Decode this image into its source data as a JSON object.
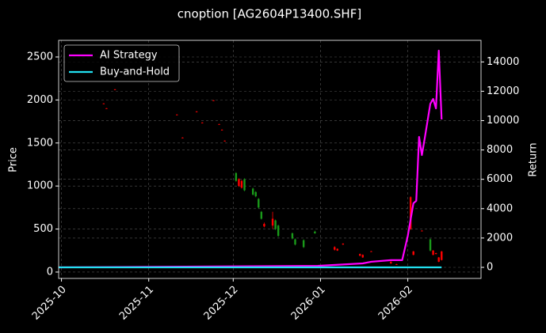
{
  "chart_data": {
    "type": "candlestick",
    "title": "cnoption [AG2604P13400.SHF]",
    "ylabel": "Price",
    "y2label": "Return",
    "xlim": [
      "2025-09-30",
      "2026-02-27"
    ],
    "xticks": [
      {
        "value": "2025-10-01",
        "label": "2025-10"
      },
      {
        "value": "2025-11-01",
        "label": "2025-11"
      },
      {
        "value": "2025-12-01",
        "label": "2025-12"
      },
      {
        "value": "2026-01-01",
        "label": "2026-01"
      },
      {
        "value": "2026-02-01",
        "label": "2026-02"
      }
    ],
    "ylim": [
      -74,
      2693
    ],
    "yticks": [
      0,
      500,
      1000,
      1500,
      2000,
      2500
    ],
    "y2lim": [
      -755,
      15470
    ],
    "y2ticks": [
      0,
      2000,
      4000,
      6000,
      8000,
      10000,
      12000,
      14000
    ],
    "grid": true,
    "legend_position": "upper left",
    "up_color": "#ff0000",
    "down_color": "#1a9a1a",
    "x": [
      "2025-10-16",
      "2025-10-17",
      "2025-10-20",
      "2025-11-11",
      "2025-11-13",
      "2025-11-18",
      "2025-11-20",
      "2025-11-24",
      "2025-11-26",
      "2025-11-27",
      "2025-11-28",
      "2025-12-02",
      "2025-12-03",
      "2025-12-04",
      "2025-12-05",
      "2025-12-08",
      "2025-12-09",
      "2025-12-10",
      "2025-12-11",
      "2025-12-12",
      "2025-12-15",
      "2025-12-16",
      "2025-12-17",
      "2025-12-22",
      "2025-12-23",
      "2025-12-26",
      "2025-12-30",
      "2026-01-06",
      "2026-01-07",
      "2026-01-09",
      "2026-01-15",
      "2026-01-16",
      "2026-01-19",
      "2026-01-26",
      "2026-01-28",
      "2026-02-02",
      "2026-02-03",
      "2026-02-06",
      "2026-02-09",
      "2026-02-10",
      "2026-02-11",
      "2026-02-12",
      "2026-02-13"
    ],
    "open": [
      1955,
      1900,
      2120,
      1828,
      1560,
      1864,
      1735,
      1993,
      1717,
      1652,
      1524,
      1150,
      1000,
      980,
      1080,
      970,
      930,
      850,
      700,
      530,
      540,
      600,
      540,
      450,
      380,
      370,
      470,
      260,
      250,
      320,
      190,
      170,
      238,
      100,
      88,
      500,
      200,
      478,
      380,
      200,
      210,
      120,
      140
    ],
    "high": [
      1962,
      1906,
      2126,
      1833,
      1566,
      1870,
      1740,
      1998,
      1722,
      1658,
      1530,
      1160,
      1090,
      1070,
      1090,
      980,
      940,
      860,
      710,
      575,
      700,
      610,
      550,
      460,
      390,
      380,
      480,
      300,
      275,
      335,
      215,
      205,
      245,
      125,
      95,
      880,
      245,
      485,
      390,
      255,
      225,
      175,
      245
    ],
    "low": [
      1953,
      1898,
      2118,
      1826,
      1558,
      1862,
      1733,
      1990,
      1715,
      1650,
      1522,
      1050,
      990,
      970,
      940,
      890,
      870,
      740,
      610,
      520,
      500,
      490,
      410,
      380,
      310,
      280,
      445,
      250,
      245,
      315,
      185,
      165,
      235,
      95,
      85,
      490,
      195,
      475,
      240,
      195,
      205,
      115,
      135
    ],
    "close": [
      1960,
      1904,
      2124,
      1831,
      1563,
      1867,
      1738,
      1996,
      1720,
      1655,
      1527,
      1060,
      1080,
      1060,
      950,
      900,
      880,
      750,
      620,
      560,
      620,
      500,
      420,
      390,
      320,
      290,
      450,
      290,
      270,
      330,
      210,
      200,
      242,
      120,
      92,
      870,
      240,
      482,
      250,
      250,
      220,
      170,
      240
    ],
    "series": [
      {
        "name": "AI Strategy",
        "color": "#ff00ff",
        "axis": "y2",
        "x": [
          "2025-09-30",
          "2025-12-31",
          "2026-01-16",
          "2026-01-19",
          "2026-01-26",
          "2026-01-30",
          "2026-02-01",
          "2026-02-03",
          "2026-02-04",
          "2026-02-05",
          "2026-02-06",
          "2026-02-07",
          "2026-02-09",
          "2026-02-10",
          "2026-02-11",
          "2026-02-12",
          "2026-02-13"
        ],
        "values": [
          0,
          100,
          270,
          380,
          490,
          490,
          2150,
          4370,
          4530,
          8890,
          7650,
          8780,
          11150,
          11480,
          10830,
          14770,
          10080
        ]
      },
      {
        "name": "Buy-and-Hold",
        "color": "#22e0f0",
        "axis": "y2",
        "x": [
          "2025-09-30",
          "2026-02-13"
        ],
        "values": [
          0,
          0
        ]
      }
    ]
  }
}
